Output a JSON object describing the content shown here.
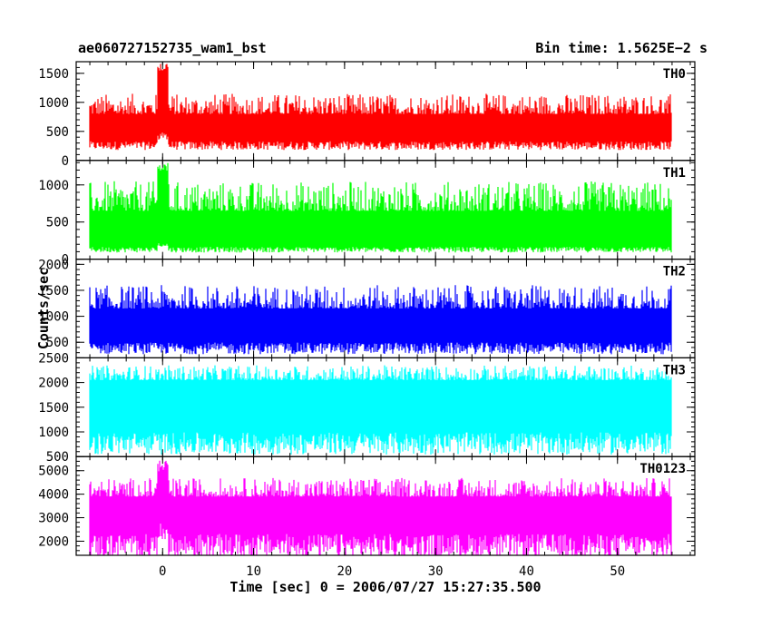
{
  "header": {
    "title": "ae060727152735_wam1_bst",
    "bin_time": "Bin time: 1.5625E−2 s"
  },
  "chart_data": {
    "type": "line",
    "title": "ae060727152735_wam1_bst",
    "subtitle": "Bin time: 1.5625E−2 s",
    "xlabel": "Time [sec] 0 = 2006/07/27 15:27:35.500",
    "ylabel": "Counts/sec",
    "xlim": [
      -9.5,
      58.5
    ],
    "xticks": [
      0,
      10,
      20,
      30,
      40,
      50
    ],
    "data_x_range": [
      -8,
      56
    ],
    "grid": false,
    "panels": [
      {
        "name": "TH0",
        "color": "#ff0000",
        "ylim": [
          0,
          1700
        ],
        "yticks": [
          0,
          500,
          1000,
          1500
        ],
        "baseline": 300,
        "band_top": 800,
        "peak_typical": 1150,
        "burst": {
          "x": 0,
          "peak": 1700,
          "low": 450
        }
      },
      {
        "name": "TH1",
        "color": "#00ff00",
        "ylim": [
          0,
          1330
        ],
        "yticks": [
          0,
          500,
          1000
        ],
        "baseline": 150,
        "band_top": 650,
        "peak_typical": 1050,
        "burst": {
          "x": 0,
          "peak": 1300,
          "low": 200
        }
      },
      {
        "name": "TH2",
        "color": "#0000ff",
        "ylim": [
          200,
          2100
        ],
        "yticks": [
          500,
          1000,
          1500,
          2000
        ],
        "baseline": 450,
        "band_top": 1150,
        "peak_typical": 1600,
        "burst": null
      },
      {
        "name": "TH3",
        "color": "#00ffff",
        "ylim": [
          500,
          2500
        ],
        "yticks": [
          500,
          1000,
          1500,
          2000,
          2500
        ],
        "baseline": 900,
        "band_top": 2050,
        "peak_typical": 2350,
        "burst": null
      },
      {
        "name": "TH0123",
        "color": "#ff00ff",
        "ylim": [
          1400,
          5600
        ],
        "yticks": [
          2000,
          3000,
          4000,
          5000
        ],
        "baseline": 2100,
        "band_top": 3900,
        "peak_typical": 4700,
        "burst": {
          "x": 0,
          "peak": 5500,
          "low": 2500
        }
      }
    ]
  }
}
